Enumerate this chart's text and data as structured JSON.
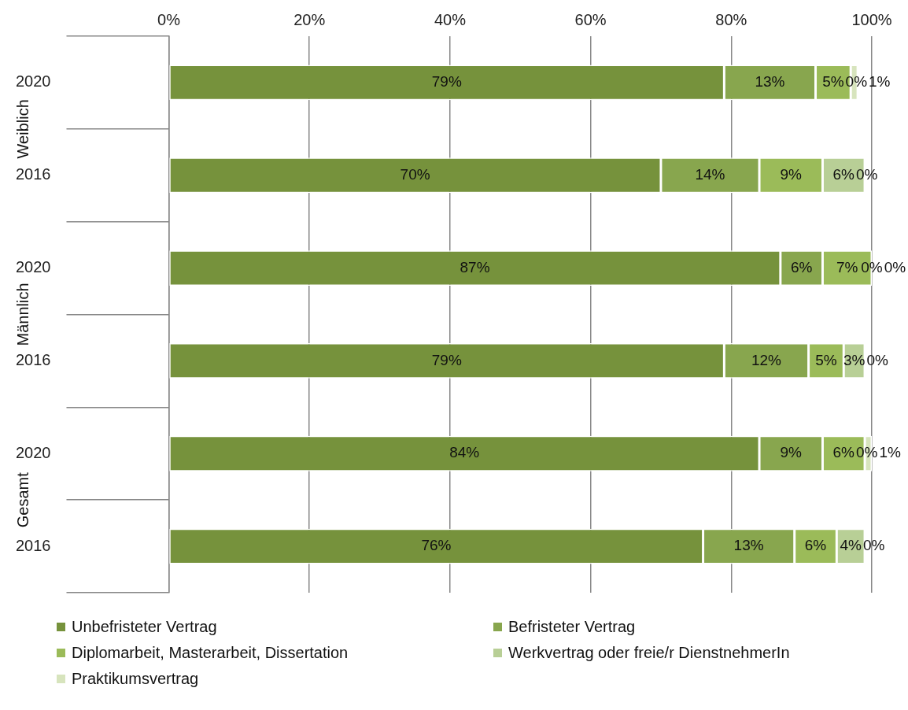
{
  "chart_data": {
    "type": "bar",
    "orientation": "horizontal",
    "stacked": true,
    "grid": "x",
    "legend": "bottom",
    "categories": [
      "2020",
      "2016",
      "2020",
      "2016",
      "2020",
      "2016"
    ],
    "annotations": [
      "Weiblich",
      "Männlich",
      "Gesamt"
    ],
    "xlim": [
      0,
      100
    ],
    "xticks": [
      {
        "value": 0,
        "label": "0%"
      },
      {
        "value": 20,
        "label": "20%"
      },
      {
        "value": 40,
        "label": "40%"
      },
      {
        "value": 60,
        "label": "60%"
      },
      {
        "value": 80,
        "label": "80%"
      },
      {
        "value": 100,
        "label": "100%"
      }
    ],
    "series": [
      {
        "name": "Unbefristeter Vertrag",
        "color": "#76923c",
        "values": [
          79,
          70,
          87,
          79,
          84,
          76
        ],
        "value_labels": [
          "79%",
          "70%",
          "87%",
          "79%",
          "84%",
          "76%"
        ]
      },
      {
        "name": "Befristeter Vertrag",
        "color": "#88a64e",
        "values": [
          13,
          14,
          6,
          12,
          9,
          13
        ],
        "value_labels": [
          "13%",
          "14%",
          "6%",
          "12%",
          "9%",
          "13%"
        ]
      },
      {
        "name": "Diplomarbeit, Masterarbeit, Dissertation",
        "color": "#9bbb59",
        "values": [
          5,
          9,
          7,
          5,
          6,
          6
        ],
        "value_labels": [
          "5%",
          "9%",
          "7%",
          "5%",
          "6%",
          "6%"
        ]
      },
      {
        "name": "Werkvertrag oder freie/r DienstnehmerIn",
        "color": "#b8cf96",
        "values": [
          0,
          6,
          0,
          3,
          0,
          4
        ],
        "value_labels": [
          "0%",
          "6%",
          "0%",
          "3%",
          "0%",
          "4%"
        ]
      },
      {
        "name": "Praktikumsvertrag",
        "color": "#d7e4bd",
        "values": [
          1,
          0,
          0,
          0,
          1,
          0
        ],
        "value_labels": [
          "1%",
          "0%",
          "0%",
          "0%",
          "1%",
          "0%"
        ]
      }
    ]
  }
}
